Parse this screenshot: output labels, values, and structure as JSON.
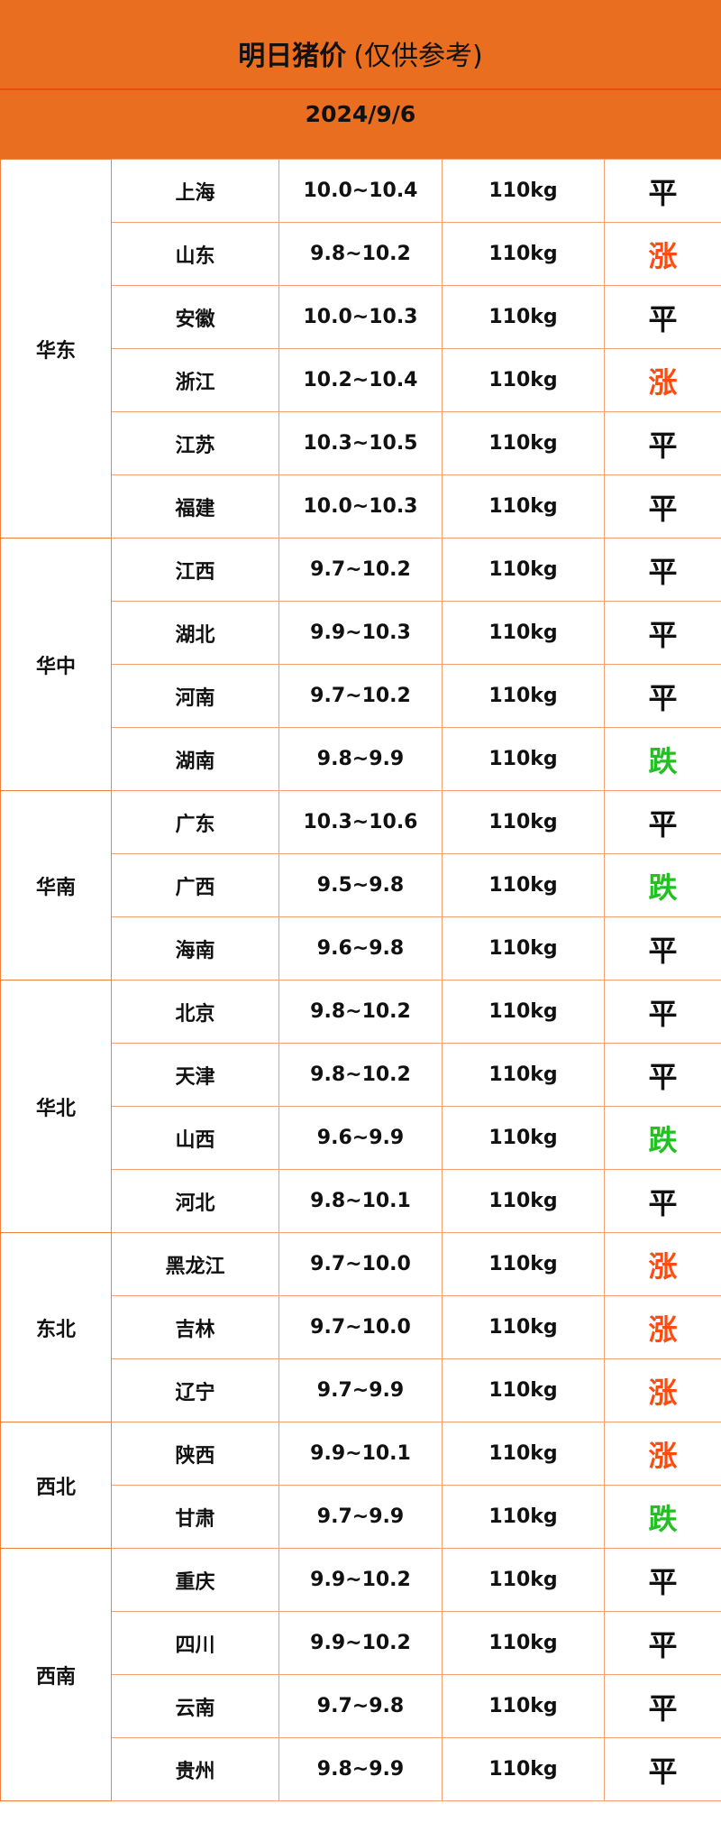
{
  "header": {
    "title_main": "明日猪价",
    "title_note": "(仅供参考)",
    "date": "2024/9/6"
  },
  "colors": {
    "header_bg": "#EA6E20",
    "border": "#F08040",
    "up": "#FF4A10",
    "down": "#22C022",
    "flat": "#111111"
  },
  "regions": [
    {
      "name": "华东",
      "rows": [
        {
          "province": "上海",
          "price": "10.0~10.4",
          "weight": "110kg",
          "trend": "平"
        },
        {
          "province": "山东",
          "price": "9.8~10.2",
          "weight": "110kg",
          "trend": "涨"
        },
        {
          "province": "安徽",
          "price": "10.0~10.3",
          "weight": "110kg",
          "trend": "平"
        },
        {
          "province": "浙江",
          "price": "10.2~10.4",
          "weight": "110kg",
          "trend": "涨"
        },
        {
          "province": "江苏",
          "price": "10.3~10.5",
          "weight": "110kg",
          "trend": "平"
        },
        {
          "province": "福建",
          "price": "10.0~10.3",
          "weight": "110kg",
          "trend": "平"
        }
      ]
    },
    {
      "name": "华中",
      "rows": [
        {
          "province": "江西",
          "price": "9.7~10.2",
          "weight": "110kg",
          "trend": "平"
        },
        {
          "province": "湖北",
          "price": "9.9~10.3",
          "weight": "110kg",
          "trend": "平"
        },
        {
          "province": "河南",
          "price": "9.7~10.2",
          "weight": "110kg",
          "trend": "平"
        },
        {
          "province": "湖南",
          "price": "9.8~9.9",
          "weight": "110kg",
          "trend": "跌"
        }
      ]
    },
    {
      "name": "华南",
      "rows": [
        {
          "province": "广东",
          "price": "10.3~10.6",
          "weight": "110kg",
          "trend": "平"
        },
        {
          "province": "广西",
          "price": "9.5~9.8",
          "weight": "110kg",
          "trend": "跌"
        },
        {
          "province": "海南",
          "price": "9.6~9.8",
          "weight": "110kg",
          "trend": "平"
        }
      ]
    },
    {
      "name": "华北",
      "rows": [
        {
          "province": "北京",
          "price": "9.8~10.2",
          "weight": "110kg",
          "trend": "平"
        },
        {
          "province": "天津",
          "price": "9.8~10.2",
          "weight": "110kg",
          "trend": "平"
        },
        {
          "province": "山西",
          "price": "9.6~9.9",
          "weight": "110kg",
          "trend": "跌"
        },
        {
          "province": "河北",
          "price": "9.8~10.1",
          "weight": "110kg",
          "trend": "平"
        }
      ]
    },
    {
      "name": "东北",
      "rows": [
        {
          "province": "黑龙江",
          "price": "9.7~10.0",
          "weight": "110kg",
          "trend": "涨"
        },
        {
          "province": "吉林",
          "price": "9.7~10.0",
          "weight": "110kg",
          "trend": "涨"
        },
        {
          "province": "辽宁",
          "price": "9.7~9.9",
          "weight": "110kg",
          "trend": "涨"
        }
      ]
    },
    {
      "name": "西北",
      "rows": [
        {
          "province": "陕西",
          "price": "9.9~10.1",
          "weight": "110kg",
          "trend": "涨"
        },
        {
          "province": "甘肃",
          "price": "9.7~9.9",
          "weight": "110kg",
          "trend": "跌"
        }
      ]
    },
    {
      "name": "西南",
      "rows": [
        {
          "province": "重庆",
          "price": "9.9~10.2",
          "weight": "110kg",
          "trend": "平"
        },
        {
          "province": "四川",
          "price": "9.9~10.2",
          "weight": "110kg",
          "trend": "平"
        },
        {
          "province": "云南",
          "price": "9.7~9.8",
          "weight": "110kg",
          "trend": "平"
        },
        {
          "province": "贵州",
          "price": "9.8~9.9",
          "weight": "110kg",
          "trend": "平"
        }
      ]
    }
  ]
}
